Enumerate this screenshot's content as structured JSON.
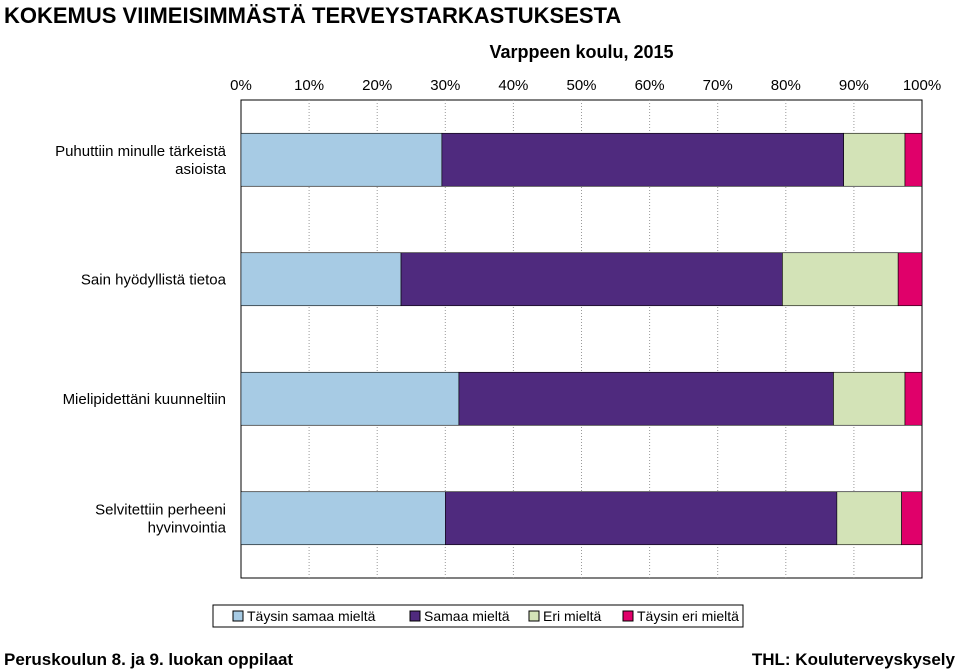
{
  "header": {
    "title": "KOKEMUS VIIMEISIMMÄSTÄ TERVEYSTARKASTUKSESTA",
    "subtitle": "Varppeen koulu, 2015"
  },
  "footer": {
    "left": "Peruskoulun 8. ja 9. luokan oppilaat",
    "right": "THL: Kouluterveyskysely"
  },
  "chart_data": {
    "type": "bar",
    "orientation": "horizontal",
    "stacked": true,
    "title": "KOKEMUS VIIMEISIMMÄSTÄ TERVEYSTARKASTUKSESTA",
    "subtitle": "Varppeen koulu, 2015",
    "xlim": [
      0,
      100
    ],
    "x_ticks": [
      "0%",
      "10%",
      "20%",
      "30%",
      "40%",
      "50%",
      "60%",
      "70%",
      "80%",
      "90%",
      "100%"
    ],
    "x_axis_position": "top",
    "grid": "vertical dashed",
    "legend_position": "bottom",
    "categories": [
      [
        "Puhuttiin minulle tärkeistä",
        "asioista"
      ],
      [
        "Sain hyödyllistä tietoa"
      ],
      [
        "Mielipidettäni kuunneltiin"
      ],
      [
        "Selvitettiin perheeni",
        "hyvinvointia"
      ]
    ],
    "series": [
      {
        "name": "Täysin samaa mieltä",
        "color": "#a7cbe4",
        "values": [
          29.5,
          23.5,
          32,
          30
        ]
      },
      {
        "name": "Samaa mieltä",
        "color": "#4f2a7e",
        "values": [
          59,
          56,
          55,
          57.5
        ]
      },
      {
        "name": "Eri mieltä",
        "color": "#d3e3b7",
        "values": [
          9,
          17,
          10.5,
          9.5
        ]
      },
      {
        "name": "Täysin eri mieltä",
        "color": "#e0006a",
        "values": [
          2.5,
          3.5,
          2.5,
          3
        ]
      }
    ]
  }
}
